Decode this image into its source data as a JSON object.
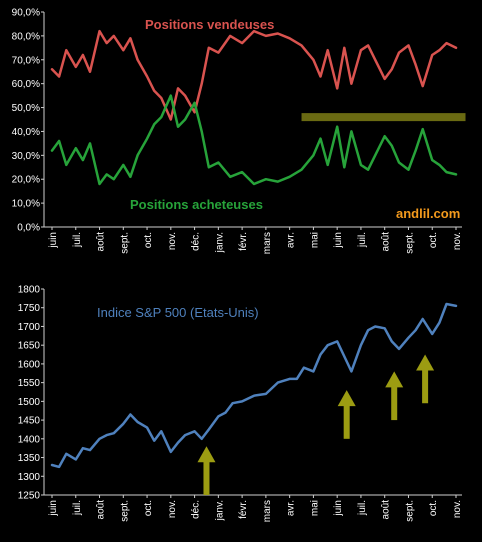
{
  "brand": {
    "text": "andlil.com",
    "color": "#f39a1d"
  },
  "months": [
    "juin",
    "juil.",
    "août",
    "sept.",
    "oct.",
    "nov.",
    "déc.",
    "janv.",
    "févr.",
    "mars",
    "avr.",
    "mai",
    "juin",
    "juil.",
    "août",
    "sept.",
    "oct.",
    "nov."
  ],
  "colors": {
    "sellers": "#d9534f",
    "buyers": "#27a33a",
    "sp500": "#4f81bd",
    "arrow": "#9c9c12",
    "band": "#6a6a12"
  },
  "chart_data": [
    {
      "type": "line",
      "title": "",
      "xlabel": "",
      "ylabel": "",
      "ylim": [
        0,
        90
      ],
      "y_ticks": [
        "0,0%",
        "10,0%",
        "20,0%",
        "30,0%",
        "40,0%",
        "50,0%",
        "60,0%",
        "70,0%",
        "80,0%",
        "90,0%"
      ],
      "x_ticks": [
        "juin",
        "juil.",
        "août",
        "sept.",
        "oct.",
        "nov.",
        "déc.",
        "janv.",
        "févr.",
        "mars",
        "avr.",
        "mai",
        "juin",
        "juil.",
        "août",
        "sept.",
        "oct.",
        "nov."
      ],
      "x_range": [
        0,
        17
      ],
      "grid": false,
      "annotations": [
        {
          "text": "Positions vendeuses",
          "color": "#d9534f"
        },
        {
          "text": "Positions acheteuses",
          "color": "#27a33a"
        }
      ],
      "reference_band": {
        "value": 46.0,
        "from_x": 10.5,
        "to_x": 17.4,
        "color": "#6a6a12"
      },
      "series": [
        {
          "name": "Positions vendeuses",
          "color": "#d9534f",
          "x": [
            0,
            0.3,
            0.6,
            1,
            1.3,
            1.6,
            2,
            2.3,
            2.6,
            3,
            3.3,
            3.6,
            4,
            4.3,
            4.6,
            5,
            5.3,
            5.6,
            6,
            6.3,
            6.6,
            7,
            7.5,
            8,
            8.5,
            9,
            9.5,
            10,
            10.5,
            11,
            11.3,
            11.6,
            12,
            12.3,
            12.6,
            13,
            13.3,
            13.6,
            14,
            14.3,
            14.6,
            15,
            15.3,
            15.6,
            16,
            16.3,
            16.6,
            17
          ],
          "values": [
            66,
            63,
            74,
            67,
            72,
            65,
            82,
            77,
            80,
            74,
            79,
            70,
            63,
            57,
            54,
            45,
            58,
            55,
            48,
            60,
            75,
            73,
            80,
            77,
            82,
            80,
            81,
            79,
            76,
            70,
            63,
            74,
            58,
            75,
            60,
            74,
            76,
            70,
            62,
            66,
            73,
            76,
            68,
            59,
            72,
            74,
            77,
            75
          ]
        },
        {
          "name": "Positions acheteuses",
          "color": "#27a33a",
          "x": [
            0,
            0.3,
            0.6,
            1,
            1.3,
            1.6,
            2,
            2.3,
            2.6,
            3,
            3.3,
            3.6,
            4,
            4.3,
            4.6,
            5,
            5.3,
            5.6,
            6,
            6.3,
            6.6,
            7,
            7.5,
            8,
            8.5,
            9,
            9.5,
            10,
            10.5,
            11,
            11.3,
            11.6,
            12,
            12.3,
            12.6,
            13,
            13.3,
            13.6,
            14,
            14.3,
            14.6,
            15,
            15.3,
            15.6,
            16,
            16.3,
            16.6,
            17
          ],
          "values": [
            32,
            36,
            26,
            33,
            28,
            35,
            18,
            22,
            20,
            26,
            21,
            30,
            37,
            43,
            46,
            55,
            42,
            45,
            52,
            40,
            25,
            27,
            21,
            23,
            18,
            20,
            19,
            21,
            24,
            30,
            37,
            26,
            42,
            25,
            40,
            26,
            24,
            30,
            38,
            34,
            27,
            24,
            32,
            41,
            28,
            26,
            23,
            22
          ]
        }
      ]
    },
    {
      "type": "line",
      "title": "",
      "xlabel": "",
      "ylabel": "",
      "ylim": [
        1250,
        1800
      ],
      "y_ticks": [
        "1250",
        "1300",
        "1350",
        "1400",
        "1450",
        "1500",
        "1550",
        "1600",
        "1650",
        "1700",
        "1750",
        "1800"
      ],
      "x_ticks": [
        "juin",
        "juil.",
        "août",
        "sept.",
        "oct.",
        "nov.",
        "déc.",
        "janv.",
        "févr.",
        "mars",
        "avr.",
        "mai",
        "juin",
        "juil.",
        "août",
        "sept.",
        "oct.",
        "nov."
      ],
      "x_range": [
        0,
        17
      ],
      "grid": false,
      "annotations": [
        {
          "text": "Indice S&P 500 (Etats-Unis)",
          "color": "#4f81bd"
        }
      ],
      "arrows": [
        {
          "x": 6.5,
          "from_y": 1250,
          "to_y": 1380
        },
        {
          "x": 12.4,
          "from_y": 1400,
          "to_y": 1530
        },
        {
          "x": 14.4,
          "from_y": 1450,
          "to_y": 1580
        },
        {
          "x": 15.7,
          "from_y": 1495,
          "to_y": 1625
        }
      ],
      "series": [
        {
          "name": "Indice S&P 500 (Etats-Unis)",
          "color": "#4f81bd",
          "x": [
            0,
            0.3,
            0.6,
            1,
            1.3,
            1.6,
            2,
            2.3,
            2.6,
            3,
            3.3,
            3.6,
            4,
            4.3,
            4.6,
            5,
            5.3,
            5.6,
            6,
            6.3,
            6.6,
            7,
            7.3,
            7.6,
            8,
            8.5,
            9,
            9.5,
            10,
            10.3,
            10.6,
            11,
            11.3,
            11.6,
            12,
            12.3,
            12.6,
            13,
            13.3,
            13.6,
            14,
            14.3,
            14.6,
            15,
            15.3,
            15.6,
            16,
            16.3,
            16.6,
            17
          ],
          "values": [
            1330,
            1325,
            1360,
            1345,
            1375,
            1370,
            1400,
            1410,
            1415,
            1440,
            1465,
            1445,
            1430,
            1395,
            1420,
            1365,
            1390,
            1410,
            1420,
            1400,
            1425,
            1460,
            1470,
            1495,
            1500,
            1515,
            1520,
            1550,
            1560,
            1560,
            1590,
            1580,
            1625,
            1650,
            1660,
            1620,
            1580,
            1650,
            1690,
            1700,
            1695,
            1660,
            1640,
            1670,
            1690,
            1720,
            1680,
            1710,
            1760,
            1755
          ]
        }
      ]
    }
  ]
}
